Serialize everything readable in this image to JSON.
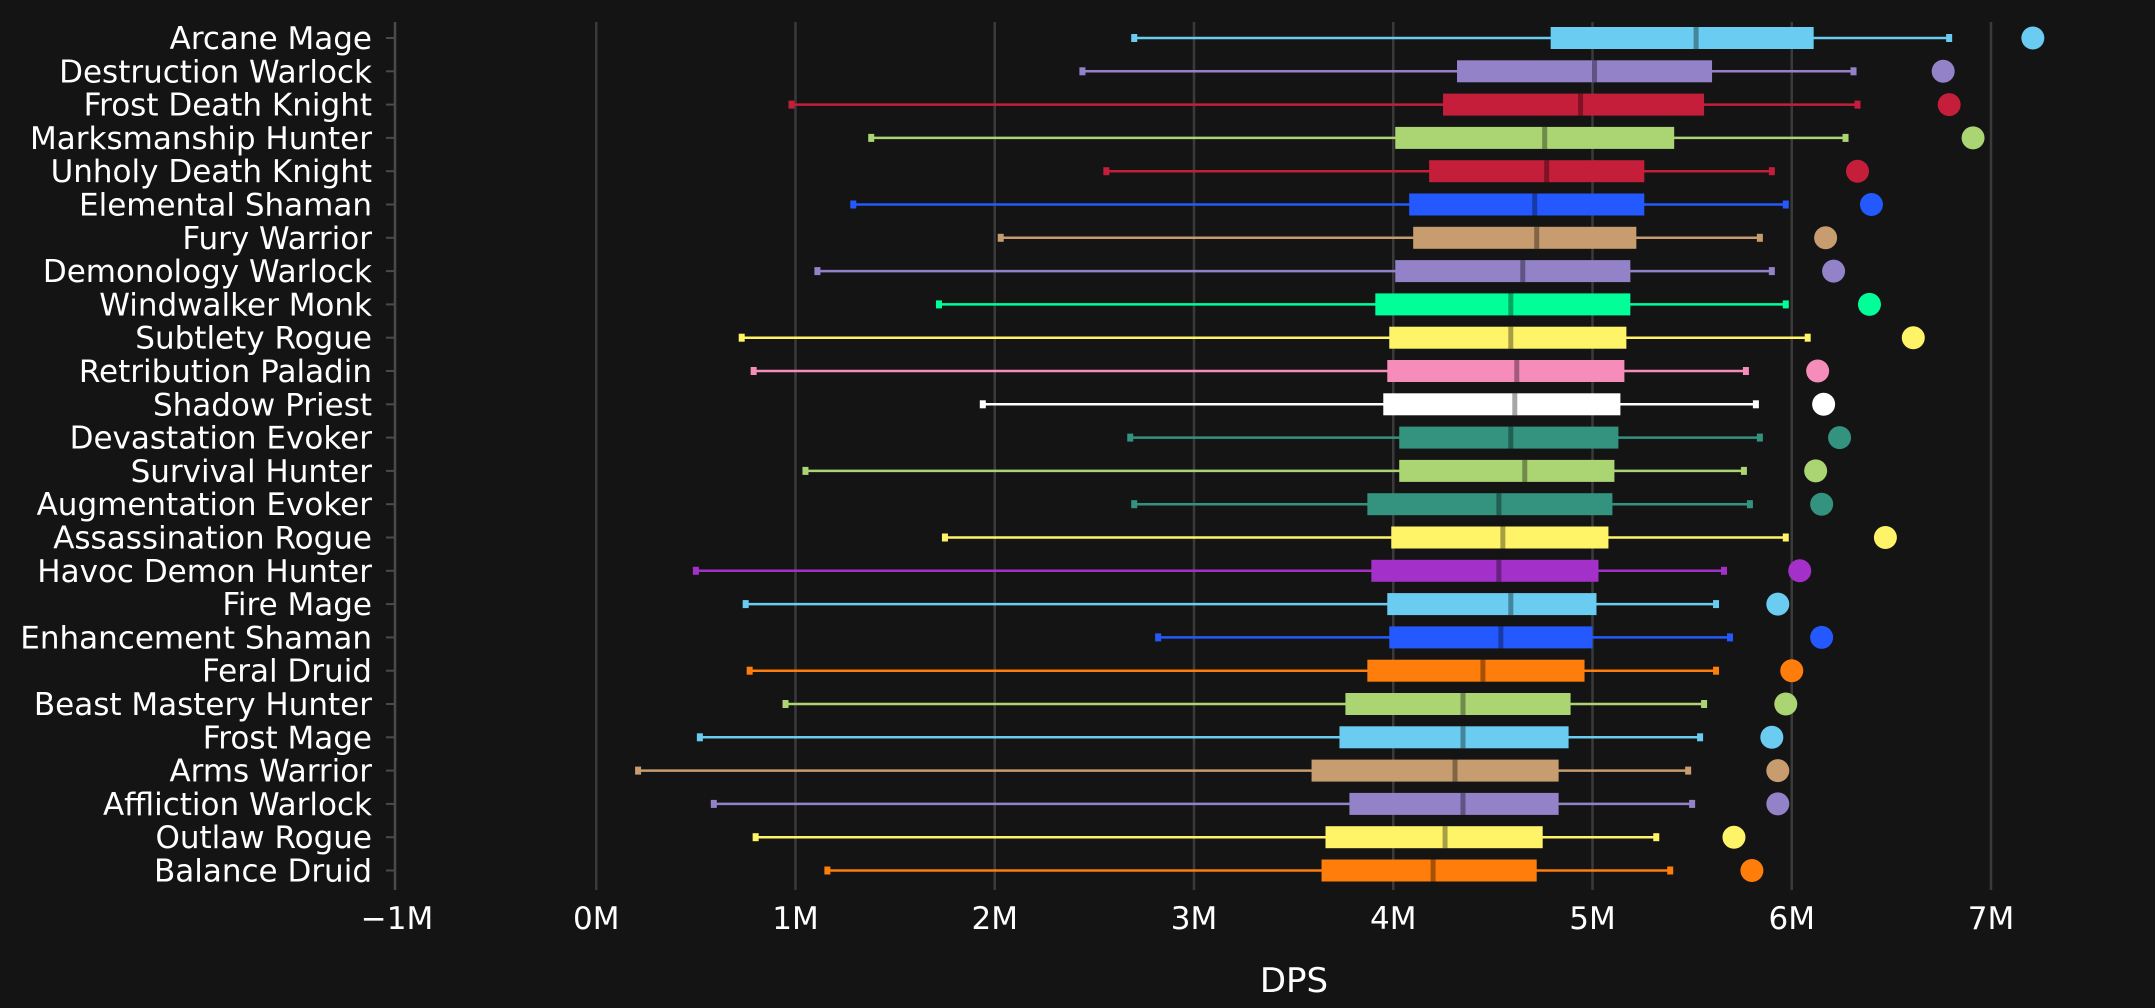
{
  "chart_data": {
    "type": "boxplot",
    "xlabel": "DPS",
    "xlim": [
      -1000000,
      7800000
    ],
    "xticks": [
      {
        "value": -1000000,
        "label": "−1M"
      },
      {
        "value": 0,
        "label": "0M"
      },
      {
        "value": 1000000,
        "label": "1M"
      },
      {
        "value": 2000000,
        "label": "2M"
      },
      {
        "value": 3000000,
        "label": "3M"
      },
      {
        "value": 4000000,
        "label": "4M"
      },
      {
        "value": 5000000,
        "label": "5M"
      },
      {
        "value": 6000000,
        "label": "6M"
      },
      {
        "value": 7000000,
        "label": "7M"
      }
    ],
    "grid": "vertical",
    "series": [
      {
        "name": "Arcane Mage",
        "color": "#69ccf0",
        "min": 2700000,
        "q1": 4790000,
        "median": 5520000,
        "q3": 6110000,
        "max": 6790000,
        "top": 7210000
      },
      {
        "name": "Destruction Warlock",
        "color": "#9482c9",
        "min": 2440000,
        "q1": 4320000,
        "median": 5010000,
        "q3": 5600000,
        "max": 6310000,
        "top": 6760000
      },
      {
        "name": "Frost Death Knight",
        "color": "#c41e3a",
        "min": 980000,
        "q1": 4250000,
        "median": 4940000,
        "q3": 5560000,
        "max": 6330000,
        "top": 6790000
      },
      {
        "name": "Marksmanship Hunter",
        "color": "#abd473",
        "min": 1380000,
        "q1": 4010000,
        "median": 4760000,
        "q3": 5410000,
        "max": 6270000,
        "top": 6910000
      },
      {
        "name": "Unholy Death Knight",
        "color": "#c41e3a",
        "min": 2560000,
        "q1": 4180000,
        "median": 4770000,
        "q3": 5260000,
        "max": 5900000,
        "top": 6330000
      },
      {
        "name": "Elemental Shaman",
        "color": "#2459ff",
        "min": 1290000,
        "q1": 4080000,
        "median": 4710000,
        "q3": 5260000,
        "max": 5970000,
        "top": 6400000
      },
      {
        "name": "Fury Warrior",
        "color": "#c79c6e",
        "min": 2030000,
        "q1": 4100000,
        "median": 4720000,
        "q3": 5220000,
        "max": 5840000,
        "top": 6170000
      },
      {
        "name": "Demonology Warlock",
        "color": "#9482c9",
        "min": 1110000,
        "q1": 4010000,
        "median": 4650000,
        "q3": 5190000,
        "max": 5900000,
        "top": 6210000
      },
      {
        "name": "Windwalker Monk",
        "color": "#00ff98",
        "min": 1720000,
        "q1": 3910000,
        "median": 4590000,
        "q3": 5190000,
        "max": 5970000,
        "top": 6390000
      },
      {
        "name": "Subtlety Rogue",
        "color": "#fff468",
        "min": 730000,
        "q1": 3980000,
        "median": 4590000,
        "q3": 5170000,
        "max": 6080000,
        "top": 6610000
      },
      {
        "name": "Retribution Paladin",
        "color": "#f58cba",
        "min": 790000,
        "q1": 3970000,
        "median": 4620000,
        "q3": 5160000,
        "max": 5770000,
        "top": 6130000
      },
      {
        "name": "Shadow Priest",
        "color": "#ffffff",
        "min": 1940000,
        "q1": 3950000,
        "median": 4610000,
        "q3": 5140000,
        "max": 5820000,
        "top": 6160000
      },
      {
        "name": "Devastation Evoker",
        "color": "#33937f",
        "min": 2680000,
        "q1": 4030000,
        "median": 4590000,
        "q3": 5130000,
        "max": 5840000,
        "top": 6240000
      },
      {
        "name": "Survival Hunter",
        "color": "#abd473",
        "min": 1050000,
        "q1": 4030000,
        "median": 4660000,
        "q3": 5110000,
        "max": 5760000,
        "top": 6120000
      },
      {
        "name": "Augmentation Evoker",
        "color": "#33937f",
        "min": 2700000,
        "q1": 3870000,
        "median": 4530000,
        "q3": 5100000,
        "max": 5790000,
        "top": 6150000
      },
      {
        "name": "Assassination Rogue",
        "color": "#fff468",
        "min": 1750000,
        "q1": 3990000,
        "median": 4550000,
        "q3": 5080000,
        "max": 5970000,
        "top": 6470000
      },
      {
        "name": "Havoc Demon Hunter",
        "color": "#a330c9",
        "min": 500000,
        "q1": 3890000,
        "median": 4530000,
        "q3": 5030000,
        "max": 5660000,
        "top": 6040000
      },
      {
        "name": "Fire Mage",
        "color": "#69ccf0",
        "min": 750000,
        "q1": 3970000,
        "median": 4590000,
        "q3": 5020000,
        "max": 5620000,
        "top": 5930000
      },
      {
        "name": "Enhancement Shaman",
        "color": "#2459ff",
        "min": 2820000,
        "q1": 3980000,
        "median": 4540000,
        "q3": 5000000,
        "max": 5690000,
        "top": 6150000
      },
      {
        "name": "Feral Druid",
        "color": "#ff7d0a",
        "min": 770000,
        "q1": 3870000,
        "median": 4450000,
        "q3": 4960000,
        "max": 5620000,
        "top": 6000000
      },
      {
        "name": "Beast Mastery Hunter",
        "color": "#abd473",
        "min": 950000,
        "q1": 3760000,
        "median": 4350000,
        "q3": 4890000,
        "max": 5560000,
        "top": 5970000
      },
      {
        "name": "Frost Mage",
        "color": "#69ccf0",
        "min": 520000,
        "q1": 3730000,
        "median": 4350000,
        "q3": 4880000,
        "max": 5540000,
        "top": 5900000
      },
      {
        "name": "Arms Warrior",
        "color": "#c79c6e",
        "min": 210000,
        "q1": 3590000,
        "median": 4310000,
        "q3": 4830000,
        "max": 5480000,
        "top": 5930000
      },
      {
        "name": "Affliction Warlock",
        "color": "#9482c9",
        "min": 590000,
        "q1": 3780000,
        "median": 4350000,
        "q3": 4830000,
        "max": 5500000,
        "top": 5930000
      },
      {
        "name": "Outlaw Rogue",
        "color": "#fff468",
        "min": 800000,
        "q1": 3660000,
        "median": 4260000,
        "q3": 4750000,
        "max": 5320000,
        "top": 5710000
      },
      {
        "name": "Balance Druid",
        "color": "#ff7d0a",
        "min": 1160000,
        "q1": 3640000,
        "median": 4200000,
        "q3": 4720000,
        "max": 5390000,
        "top": 5800000
      }
    ]
  }
}
